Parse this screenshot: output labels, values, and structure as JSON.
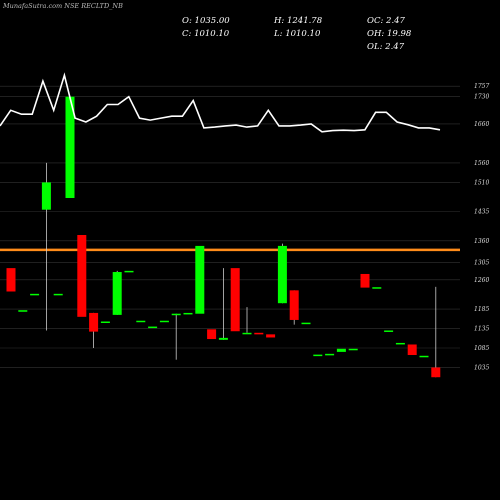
{
  "header": {
    "title": "MunafaSutra.com NSE RECLTD_NB"
  },
  "info": {
    "open": "O: 1035.00",
    "high": "H: 1241.78",
    "chg_oc": "OC: 2.47",
    "close": "C: 1010.10",
    "low": "L: 1010.10",
    "chg_oh": "OH: 19.98",
    "chg_ol": "OL: 2.47"
  },
  "colors": {
    "up": "#00ff00",
    "down": "#ff0000",
    "line": "#ffffff",
    "grid": "#333333",
    "level": "#ff8c1a"
  },
  "chart_data": {
    "type": "candlestick",
    "ylim": [
      1008,
      1760
    ],
    "yticks": [
      1757,
      1730,
      1660,
      1560,
      1510,
      1435,
      1360,
      1305,
      1260,
      1185,
      1135,
      1085,
      1035
    ],
    "hline": 1337,
    "candles": [
      {
        "o": 1290,
        "h": 1290,
        "l": 1230,
        "c": 1230
      },
      {
        "o": 1178,
        "h": 1182,
        "l": 1178,
        "c": 1182
      },
      {
        "o": 1224,
        "h": 1224,
        "l": 1224,
        "c": 1224
      },
      {
        "o": 1440,
        "h": 1560,
        "l": 1130,
        "c": 1510
      },
      {
        "o": 1224,
        "h": 1224,
        "l": 1224,
        "c": 1224
      },
      {
        "o": 1470,
        "h": 1730,
        "l": 1470,
        "c": 1730
      },
      {
        "o": 1375,
        "h": 1375,
        "l": 1165,
        "c": 1165
      },
      {
        "o": 1175,
        "h": 1175,
        "l": 1085,
        "c": 1127
      },
      {
        "o": 1153,
        "h": 1153,
        "l": 1153,
        "c": 1153
      },
      {
        "o": 1170,
        "h": 1283,
        "l": 1170,
        "c": 1280
      },
      {
        "o": 1283,
        "h": 1283,
        "l": 1283,
        "c": 1283
      },
      {
        "o": 1155,
        "h": 1155,
        "l": 1155,
        "c": 1155
      },
      {
        "o": 1140,
        "h": 1140,
        "l": 1140,
        "c": 1140
      },
      {
        "o": 1155,
        "h": 1155,
        "l": 1155,
        "c": 1155
      },
      {
        "o": 1170,
        "h": 1173,
        "l": 1055,
        "c": 1173
      },
      {
        "o": 1175,
        "h": 1175,
        "l": 1175,
        "c": 1175
      },
      {
        "o": 1173,
        "h": 1347,
        "l": 1173,
        "c": 1347
      },
      {
        "o": 1133,
        "h": 1133,
        "l": 1108,
        "c": 1108
      },
      {
        "o": 1106,
        "h": 1290,
        "l": 1106,
        "c": 1111
      },
      {
        "o": 1290,
        "h": 1290,
        "l": 1128,
        "c": 1128
      },
      {
        "o": 1124,
        "h": 1190,
        "l": 1124,
        "c": 1124
      },
      {
        "o": 1124,
        "h": 1124,
        "l": 1120,
        "c": 1120
      },
      {
        "o": 1120,
        "h": 1120,
        "l": 1112,
        "c": 1112
      },
      {
        "o": 1200,
        "h": 1353,
        "l": 1200,
        "c": 1347
      },
      {
        "o": 1233,
        "h": 1233,
        "l": 1145,
        "c": 1157
      },
      {
        "o": 1150,
        "h": 1150,
        "l": 1150,
        "c": 1150
      },
      {
        "o": 1068,
        "h": 1068,
        "l": 1068,
        "c": 1068
      },
      {
        "o": 1070,
        "h": 1070,
        "l": 1070,
        "c": 1070
      },
      {
        "o": 1075,
        "h": 1083,
        "l": 1075,
        "c": 1083
      },
      {
        "o": 1083,
        "h": 1083,
        "l": 1083,
        "c": 1083
      },
      {
        "o": 1275,
        "h": 1275,
        "l": 1240,
        "c": 1240
      },
      {
        "o": 1241,
        "h": 1241,
        "l": 1241,
        "c": 1241
      },
      {
        "o": 1130,
        "h": 1130,
        "l": 1130,
        "c": 1130
      },
      {
        "o": 1098,
        "h": 1098,
        "l": 1098,
        "c": 1098
      },
      {
        "o": 1094,
        "h": 1094,
        "l": 1067,
        "c": 1067
      },
      {
        "o": 1065,
        "h": 1065,
        "l": 1065,
        "c": 1065
      },
      {
        "o": 1035,
        "h": 1242,
        "l": 1010,
        "c": 1010
      }
    ],
    "line": [
      1655,
      1695,
      1685,
      1685,
      1770,
      1695,
      1785,
      1675,
      1665,
      1680,
      1710,
      1710,
      1730,
      1675,
      1670,
      1675,
      1680,
      1680,
      1720,
      1650,
      1652,
      1655,
      1657,
      1652,
      1655,
      1695,
      1655,
      1655,
      1657,
      1660,
      1640,
      1643,
      1644,
      1643,
      1645,
      1690,
      1690,
      1665,
      1658,
      1650,
      1650,
      1645
    ]
  }
}
